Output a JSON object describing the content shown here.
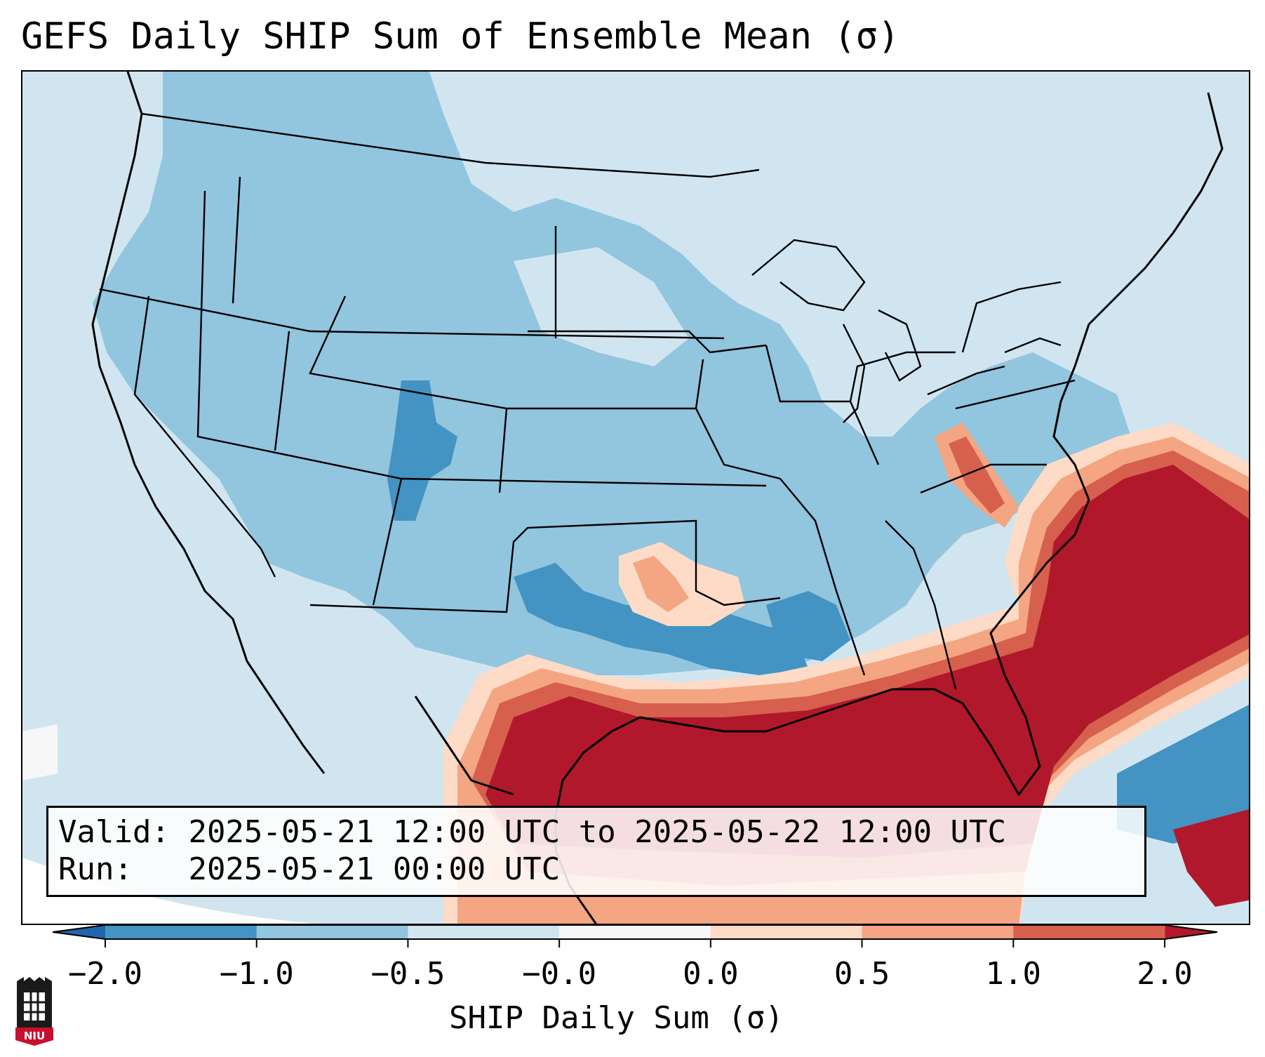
{
  "title": "GEFS Daily SHIP Sum of Ensemble Mean (σ)",
  "info": {
    "valid_label": "Valid:",
    "valid_value": "2025-05-21 12:00 UTC to 2025-05-22 12:00 UTC",
    "run_label": "Run:",
    "run_value": "2025-05-21 00:00 UTC"
  },
  "colorbar": {
    "label": "SHIP Daily Sum (σ)",
    "ticks": [
      "−2.0",
      "−1.0",
      "−0.5",
      "−0.0",
      "0.0",
      "0.5",
      "1.0",
      "2.0"
    ],
    "bin_colors": [
      "#4393c3",
      "#92c5de",
      "#d1e5f0",
      "#f7f7f7",
      "#fddbc7",
      "#f4a582",
      "#d6604d"
    ],
    "extend_low_color": "#2166ac",
    "extend_high_color": "#b2182b"
  },
  "logo": {
    "text": "NIU",
    "icon": "niu-logo-icon"
  }
}
